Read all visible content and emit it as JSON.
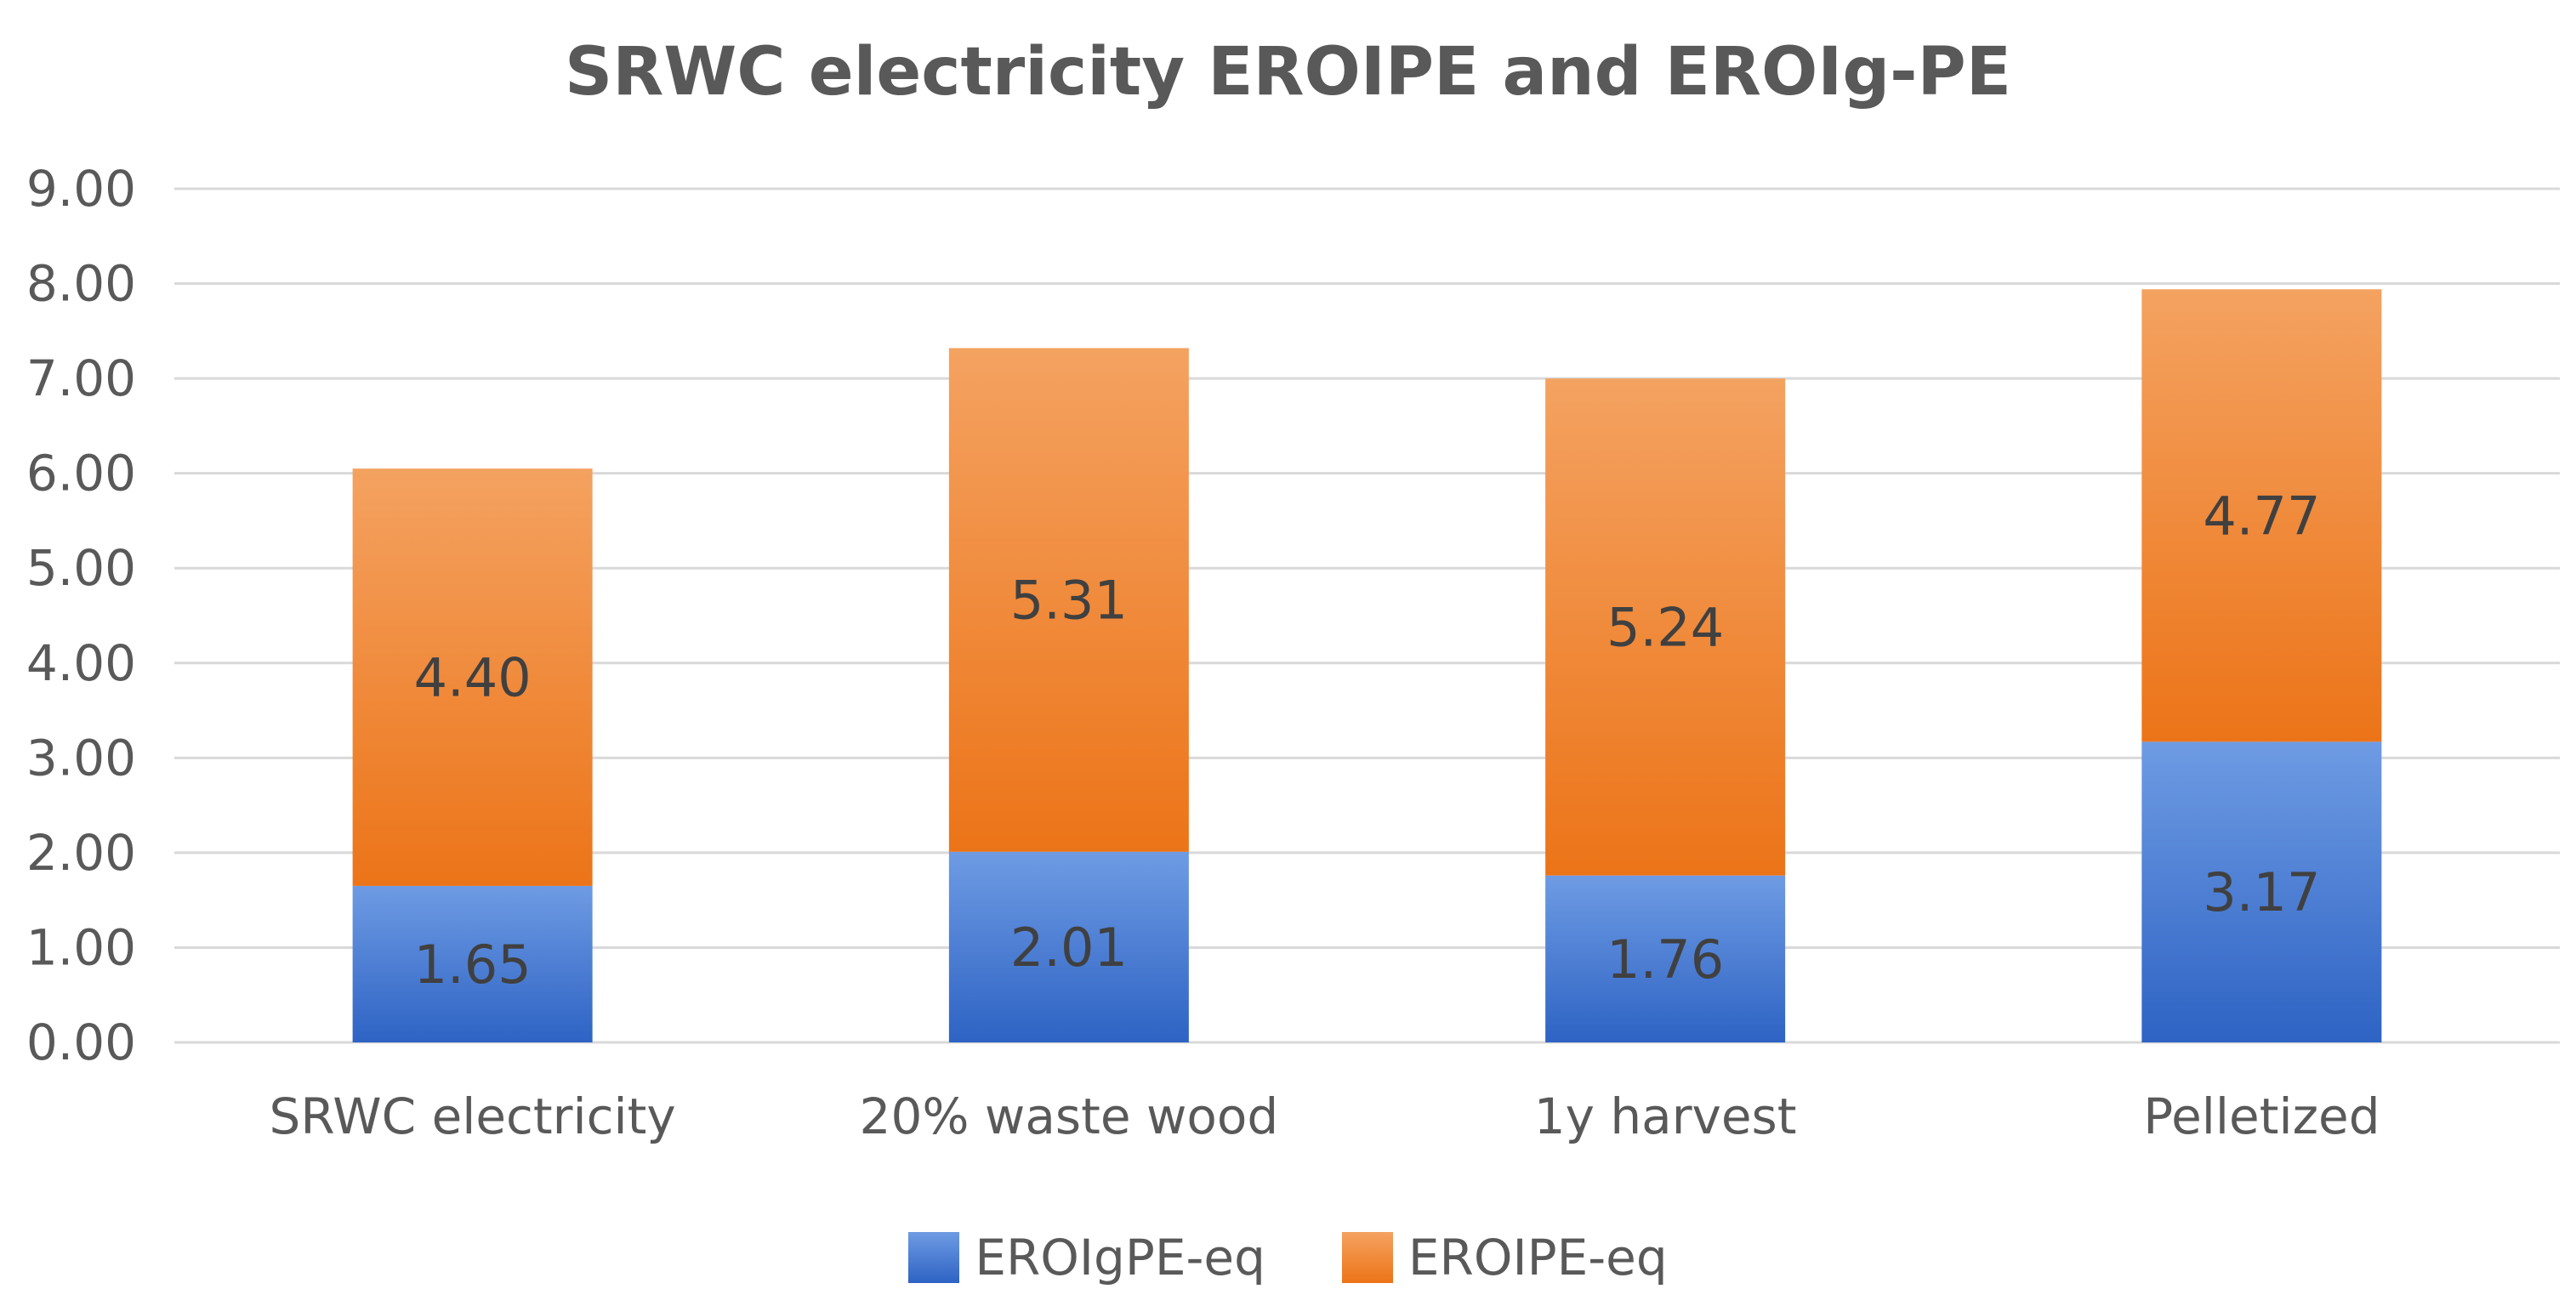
{
  "chart_data": {
    "type": "bar",
    "stacked": true,
    "title": "SRWC electricity EROIPE and EROIg-PE",
    "xlabel": "",
    "ylabel": "",
    "categories": [
      "SRWC electricity",
      "20% waste wood",
      "1y harvest",
      "Pelletized"
    ],
    "series": [
      {
        "name": "EROIgPE-eq",
        "values": [
          1.65,
          2.01,
          1.76,
          3.17
        ],
        "labels": [
          "1.65",
          "2.01",
          "1.76",
          "3.17"
        ],
        "color": "#4472C4",
        "color_top": "#6E9BE3",
        "color_bottom": "#2E63C4"
      },
      {
        "name": "EROIPE-eq",
        "values": [
          4.4,
          5.31,
          5.24,
          4.77
        ],
        "labels": [
          "4.40",
          "5.31",
          "5.24",
          "4.77"
        ],
        "color": "#ED7D31",
        "color_top": "#F4A261",
        "color_bottom": "#EC7418"
      }
    ],
    "ylim": [
      0,
      9
    ],
    "yticks": [
      "0.00",
      "1.00",
      "2.00",
      "3.00",
      "4.00",
      "5.00",
      "6.00",
      "7.00",
      "8.00",
      "9.00"
    ],
    "grid": true,
    "grid_color": "#D9D9D9",
    "legend_position": "bottom"
  }
}
